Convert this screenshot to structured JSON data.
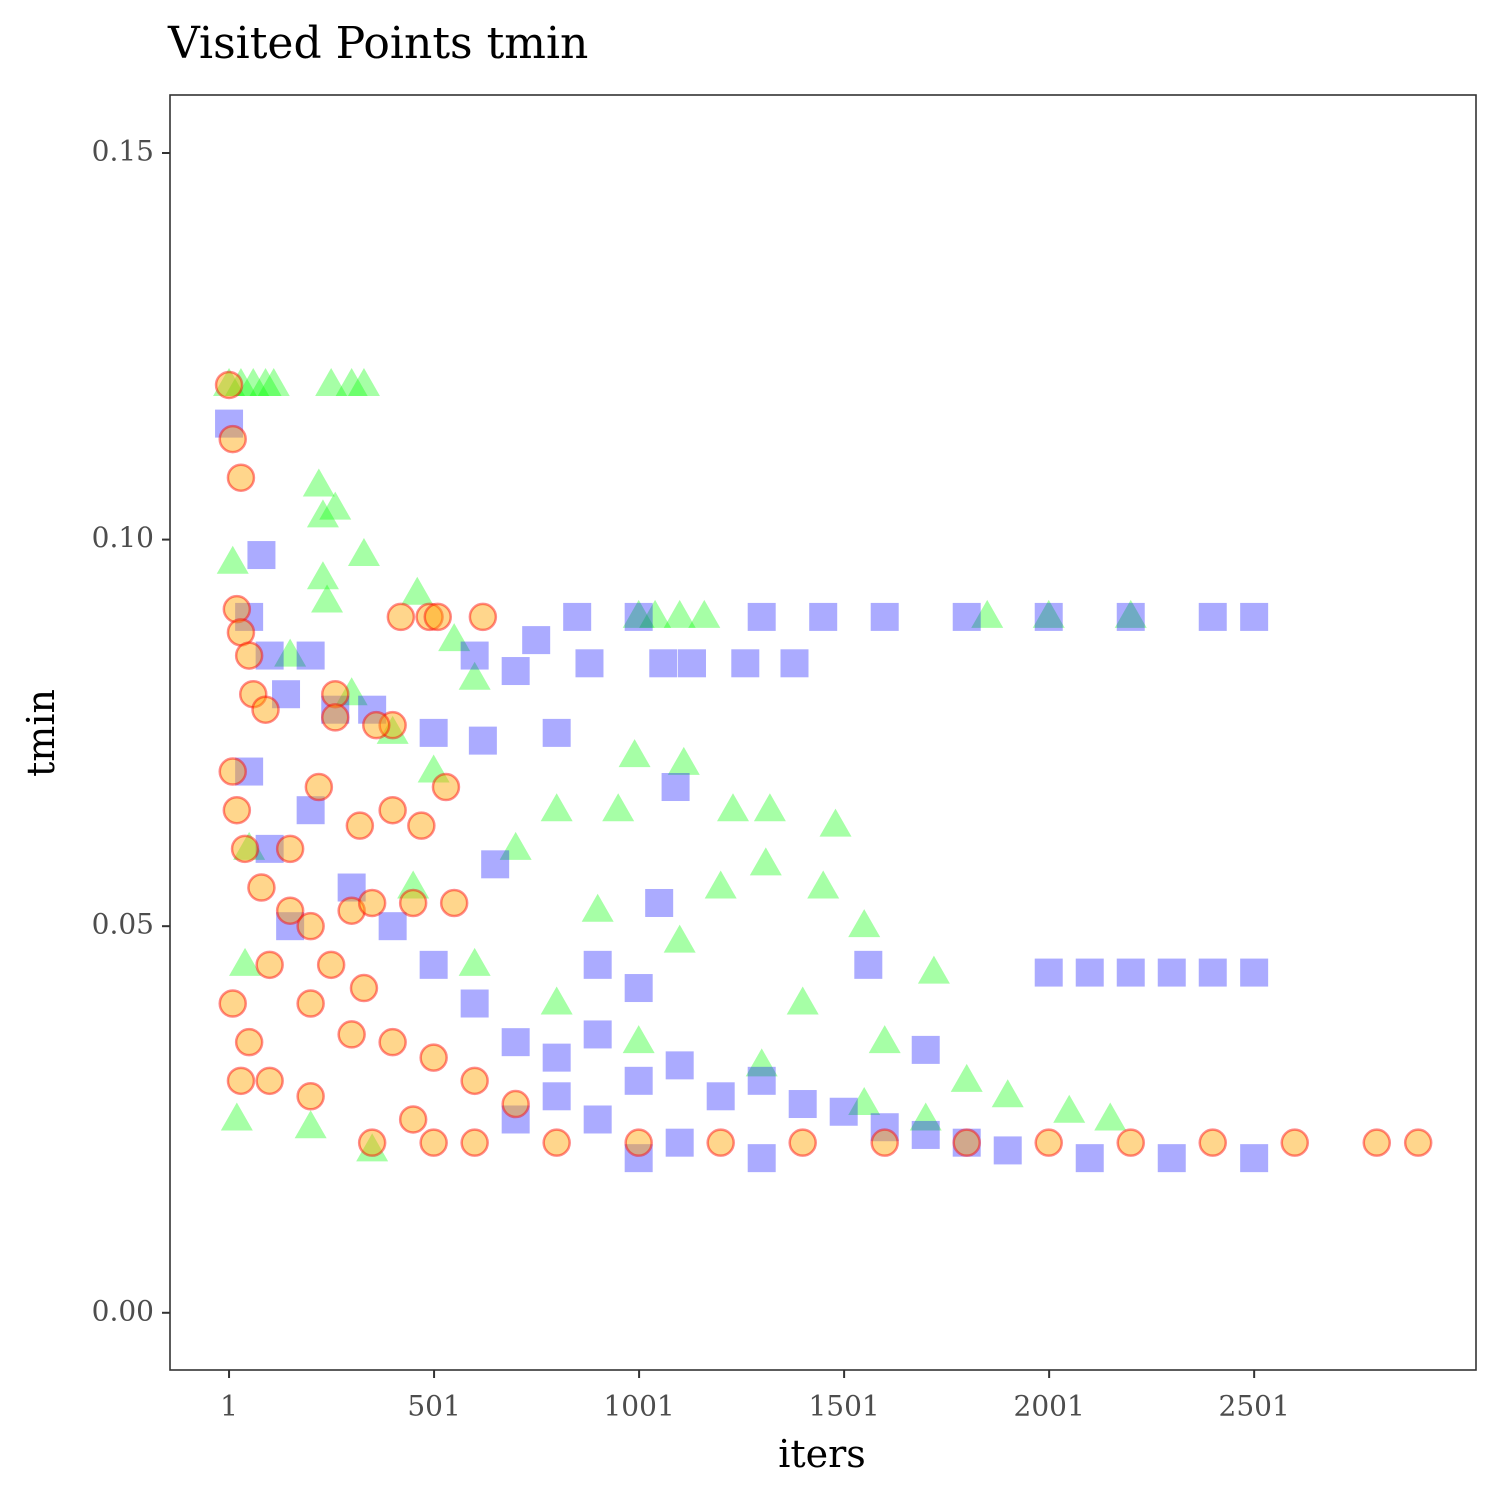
{
  "chart_data": {
    "type": "scatter",
    "title": "Visited Points tmin",
    "xlabel": "iters",
    "ylabel": "tmin",
    "xlim": [
      -143,
      3042
    ],
    "ylim": [
      -0.0074,
      0.1575
    ],
    "xticks": [
      1,
      501,
      1001,
      1501,
      2001,
      2501
    ],
    "yticks": [
      {
        "value": 0,
        "label": "0.00"
      },
      0.05,
      {
        "value": 0.1,
        "label": "0.10"
      },
      0.15
    ],
    "grid": false,
    "series": [
      {
        "color": "#00ff00",
        "marker": "triangle",
        "x": [
          1,
          30,
          60,
          90,
          110,
          250,
          300,
          330,
          10,
          220,
          230,
          260,
          330,
          230,
          240,
          460,
          600,
          550,
          1000,
          1040,
          1100,
          1160,
          1850,
          2000,
          2200,
          990,
          1110,
          1230,
          1320,
          1480,
          1310,
          800,
          950,
          1200,
          1450,
          1550,
          1720,
          1800,
          1900,
          2050,
          2150,
          1600,
          1400,
          1100,
          900,
          700,
          500,
          400,
          300,
          150,
          50,
          20,
          200,
          350,
          600,
          800,
          1000,
          1300,
          1550,
          1700,
          40,
          450
        ],
        "values": [
          0.12,
          0.12,
          0.12,
          0.12,
          0.12,
          0.12,
          0.12,
          0.12,
          0.097,
          0.107,
          0.103,
          0.104,
          0.098,
          0.095,
          0.092,
          0.093,
          0.082,
          0.087,
          0.09,
          0.09,
          0.09,
          0.09,
          0.09,
          0.09,
          0.09,
          0.072,
          0.071,
          0.065,
          0.065,
          0.063,
          0.058,
          0.065,
          0.065,
          0.055,
          0.055,
          0.05,
          0.044,
          0.03,
          0.028,
          0.026,
          0.025,
          0.035,
          0.04,
          0.048,
          0.052,
          0.06,
          0.07,
          0.075,
          0.08,
          0.085,
          0.06,
          0.025,
          0.024,
          0.021,
          0.045,
          0.04,
          0.035,
          0.032,
          0.027,
          0.025,
          0.045,
          0.055
        ]
      },
      {
        "color": "#0000ff",
        "marker": "square",
        "x": [
          1,
          80,
          50,
          100,
          140,
          200,
          260,
          350,
          500,
          600,
          750,
          850,
          1000,
          1300,
          1450,
          1600,
          1800,
          2000,
          2200,
          2400,
          2501,
          880,
          1060,
          1130,
          1260,
          1380,
          700,
          800,
          620,
          1090,
          650,
          1050,
          1560,
          1700,
          2000,
          2100,
          2200,
          2300,
          2400,
          2501,
          50,
          100,
          150,
          200,
          300,
          400,
          500,
          600,
          700,
          800,
          900,
          1000,
          1100,
          1200,
          1300,
          1400,
          1500,
          1600,
          1700,
          1800,
          1900,
          2100,
          2300,
          2501,
          900,
          1100,
          1300,
          1000,
          700,
          800,
          900,
          1000
        ],
        "values": [
          0.115,
          0.098,
          0.09,
          0.085,
          0.08,
          0.085,
          0.078,
          0.078,
          0.075,
          0.085,
          0.087,
          0.09,
          0.09,
          0.09,
          0.09,
          0.09,
          0.09,
          0.09,
          0.09,
          0.09,
          0.09,
          0.084,
          0.084,
          0.084,
          0.084,
          0.084,
          0.083,
          0.075,
          0.074,
          0.068,
          0.058,
          0.053,
          0.045,
          0.034,
          0.044,
          0.044,
          0.044,
          0.044,
          0.044,
          0.044,
          0.07,
          0.06,
          0.05,
          0.065,
          0.055,
          0.05,
          0.045,
          0.04,
          0.035,
          0.033,
          0.036,
          0.03,
          0.032,
          0.028,
          0.03,
          0.027,
          0.026,
          0.024,
          0.023,
          0.022,
          0.021,
          0.02,
          0.02,
          0.02,
          0.025,
          0.022,
          0.02,
          0.02,
          0.025,
          0.028,
          0.045,
          0.042
        ]
      },
      {
        "color": "#ffa500",
        "edgecolor": "#ff0000",
        "marker": "circle",
        "x": [
          1,
          10,
          30,
          20,
          30,
          50,
          60,
          90,
          260,
          260,
          420,
          490,
          510,
          620,
          400,
          360,
          320,
          400,
          470,
          530,
          220,
          10,
          20,
          40,
          80,
          150,
          200,
          300,
          350,
          450,
          550,
          330,
          10,
          30,
          100,
          200,
          300,
          400,
          500,
          600,
          700,
          100,
          200,
          350,
          500,
          600,
          800,
          1000,
          1200,
          1400,
          1600,
          1800,
          2000,
          2200,
          2400,
          2600,
          2800,
          2901,
          150,
          250,
          450,
          50
        ],
        "values": [
          0.12,
          0.113,
          0.108,
          0.091,
          0.088,
          0.085,
          0.08,
          0.078,
          0.08,
          0.077,
          0.09,
          0.09,
          0.09,
          0.09,
          0.076,
          0.076,
          0.063,
          0.065,
          0.063,
          0.068,
          0.068,
          0.07,
          0.065,
          0.06,
          0.055,
          0.052,
          0.05,
          0.052,
          0.053,
          0.053,
          0.053,
          0.042,
          0.04,
          0.03,
          0.045,
          0.04,
          0.036,
          0.035,
          0.033,
          0.03,
          0.027,
          0.03,
          0.028,
          0.022,
          0.022,
          0.022,
          0.022,
          0.022,
          0.022,
          0.022,
          0.022,
          0.022,
          0.022,
          0.022,
          0.022,
          0.022,
          0.022,
          0.022,
          0.06,
          0.045,
          0.025,
          0.035
        ]
      }
    ]
  }
}
